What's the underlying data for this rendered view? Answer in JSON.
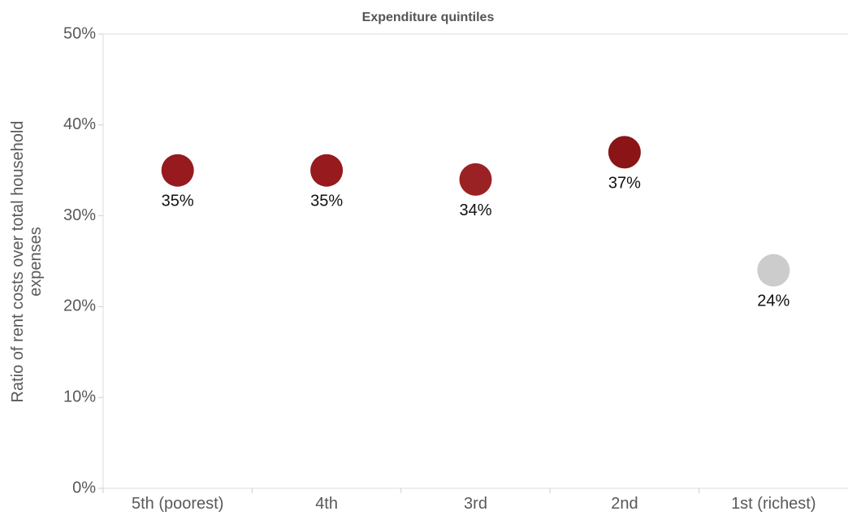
{
  "chart_data": {
    "type": "scatter",
    "title": "Expenditure quintiles",
    "ylabel": "Ratio of rent costs over total household expenses",
    "ylabel_lines": [
      "Ratio of rent costs over total household",
      "expenses"
    ],
    "xlabel": "",
    "categories": [
      "5th (poorest)",
      "4th",
      "3rd",
      "2nd",
      "1st (richest)"
    ],
    "values": [
      35,
      35,
      34,
      37,
      24
    ],
    "value_labels": [
      "35%",
      "35%",
      "34%",
      "37%",
      "24%"
    ],
    "point_colors": [
      "#961a1e",
      "#961a1e",
      "#9b2224",
      "#8a1416",
      "#cccccc"
    ],
    "ylim": [
      0,
      50
    ],
    "y_ticks": [
      0,
      10,
      20,
      30,
      40,
      50
    ],
    "y_tick_labels": [
      "0%",
      "10%",
      "20%",
      "30%",
      "40%",
      "50%"
    ],
    "grid": false,
    "legend": "none"
  }
}
